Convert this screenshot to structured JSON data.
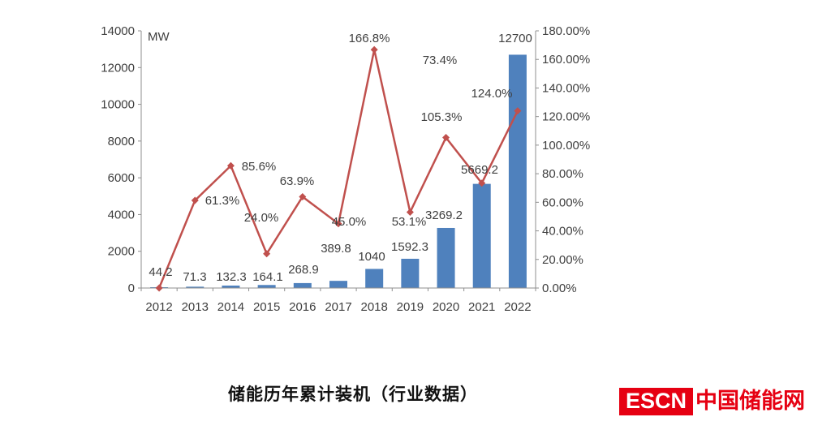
{
  "title": {
    "text": "储能历年累计装机（行业数据）"
  },
  "logo": {
    "mark": "ESCN",
    "name": "中国储能网",
    "color": "#e60012"
  },
  "chart_data": {
    "type": "bar+line",
    "categories": [
      "2012",
      "2013",
      "2014",
      "2015",
      "2016",
      "2017",
      "2018",
      "2019",
      "2020",
      "2021",
      "2022"
    ],
    "series": [
      {
        "type": "bar",
        "axis": "left",
        "unit": "MW",
        "color": "#4f81bd",
        "values": [
          44.2,
          71.3,
          132.3,
          164.1,
          268.9,
          389.8,
          1040,
          1592.3,
          3269.2,
          5669.2,
          12700
        ],
        "labels": [
          "44.2",
          "71.3",
          "132.3",
          "164.1",
          "268.9",
          "389.8",
          "1040",
          "1592.3",
          "3269.2",
          "5669.2",
          "12700"
        ]
      },
      {
        "type": "line",
        "axis": "right",
        "unit": "%",
        "color": "#c0504d",
        "values": [
          0,
          61.3,
          85.6,
          24.0,
          63.9,
          45.0,
          166.8,
          53.1,
          105.3,
          73.4,
          124.0
        ],
        "labels": [
          null,
          "61.3%",
          "85.6%",
          "24.0%",
          "63.9%",
          "45.0%",
          "166.8%",
          "53.1%",
          "105.3%",
          "73.4%",
          "124.0%"
        ]
      }
    ],
    "left_axis": {
      "title": "MW",
      "min": 0,
      "max": 14000,
      "step": 2000,
      "tick_labels": [
        "0",
        "2000",
        "4000",
        "6000",
        "8000",
        "10000",
        "12000",
        "14000"
      ]
    },
    "right_axis": {
      "min": 0,
      "max": 180,
      "step": 20,
      "tick_labels": [
        "0.00%",
        "20.00%",
        "40.00%",
        "60.00%",
        "80.00%",
        "100.00%",
        "120.00%",
        "140.00%",
        "160.00%",
        "180.00%"
      ]
    },
    "x_axis": {
      "tick_labels": [
        "2012",
        "2013",
        "2014",
        "2015",
        "2016",
        "2017",
        "2018",
        "2019",
        "2020",
        "2021",
        "2022"
      ]
    },
    "grid": false,
    "legend": "none"
  }
}
